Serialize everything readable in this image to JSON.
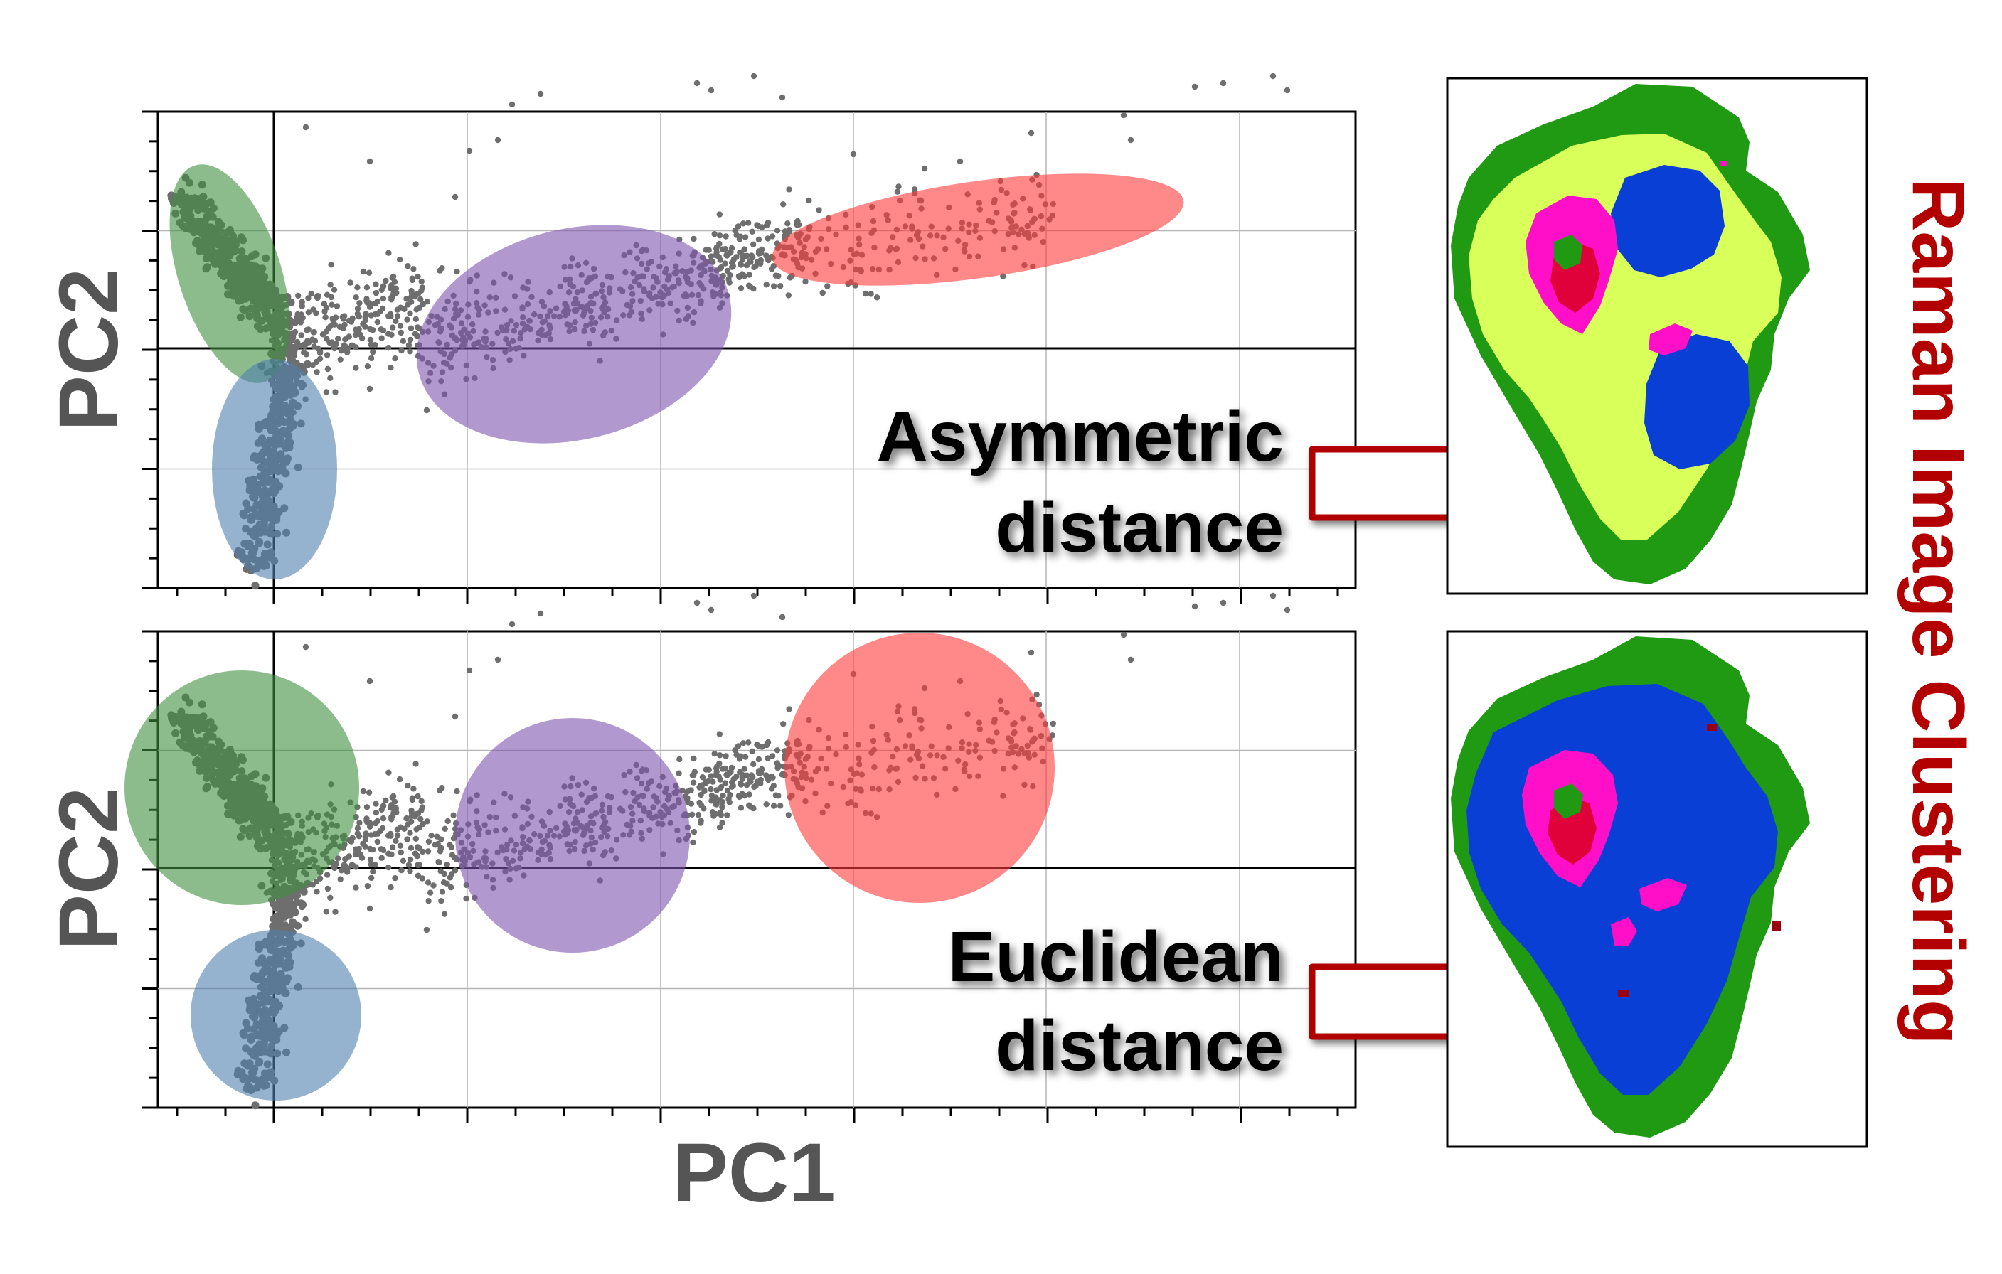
{
  "figure": {
    "x_axis_title": "PC1",
    "y_axis_title": "PC2",
    "side_title": "Raman Image Clustering"
  },
  "panels": [
    {
      "id": "asymmetric",
      "label_line1": "Asymmetric",
      "label_line2": "distance",
      "cluster_shape": "ellipses"
    },
    {
      "id": "euclidean",
      "label_line1": "Euclidean",
      "label_line2": "distance",
      "cluster_shape": "circles"
    }
  ],
  "colors": {
    "points": "#6e6e6e",
    "cluster_green": "#3f8f3f",
    "cluster_blue": "#4f7fae",
    "cluster_purple": "#7d55b0",
    "cluster_red": "#ff3b3b",
    "arrow_stroke": "#b00000",
    "side_title": "#b30000",
    "map_green": "#1f9a12",
    "map_lime": "#d9ff5a",
    "map_blue": "#0a3fd6",
    "map_magenta": "#ff10c8",
    "map_red": "#e0003a",
    "map_dark_red": "#9a0010"
  },
  "icons": {
    "arrow": "hollow-right-arrow"
  }
}
